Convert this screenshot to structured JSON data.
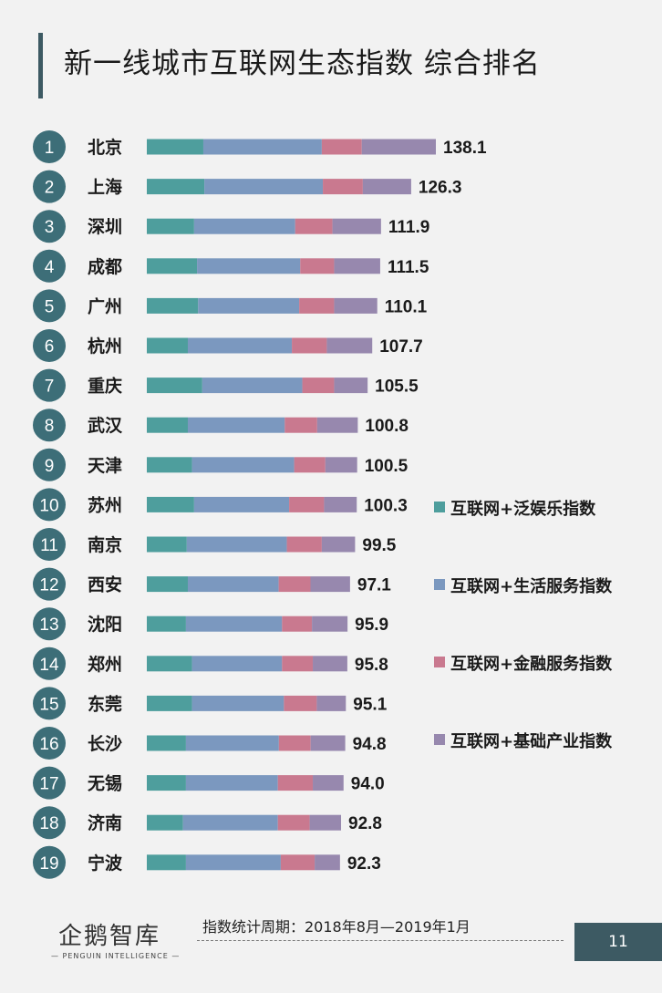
{
  "title": "新一线城市互联网生态指数 综合排名",
  "legend": [
    {
      "label": "互联网+泛娱乐指数",
      "color": "#4e9e9d"
    },
    {
      "label": "互联网+生活服务指数",
      "color": "#7b98bf"
    },
    {
      "label": "互联网+金融服务指数",
      "color": "#c9798f"
    },
    {
      "label": "互联网+基础产业指数",
      "color": "#9788ae"
    }
  ],
  "footer_note": "指数统计周期：2018年8月—2019年1月",
  "logo": {
    "main": "企鹅智库",
    "sub": "— PENGUIN INTELLIGENCE —"
  },
  "page_number": "11",
  "badge_color": "#3d6e78",
  "chart_data": {
    "type": "bar",
    "orientation": "horizontal",
    "stacked": true,
    "categories": [
      "北京",
      "上海",
      "深圳",
      "成都",
      "广州",
      "杭州",
      "重庆",
      "武汉",
      "天津",
      "苏州",
      "南京",
      "西安",
      "沈阳",
      "郑州",
      "东莞",
      "长沙",
      "无锡",
      "济南",
      "宁波"
    ],
    "ranks": [
      "1",
      "2",
      "3",
      "4",
      "5",
      "6",
      "7",
      "8",
      "9",
      "10",
      "11",
      "12",
      "13",
      "14",
      "15",
      "16",
      "17",
      "18",
      "19"
    ],
    "totals": [
      138.1,
      126.3,
      111.9,
      111.5,
      110.1,
      107.7,
      105.5,
      100.8,
      100.5,
      100.3,
      99.5,
      97.1,
      95.9,
      95.8,
      95.1,
      94.8,
      94.0,
      92.8,
      92.3
    ],
    "total_labels": [
      "138.1",
      "126.3",
      "111.9",
      "111.5",
      "110.1",
      "107.7",
      "105.5",
      "100.8",
      "100.5",
      "100.3",
      "99.5",
      "97.1",
      "95.9",
      "95.8",
      "95.1",
      "94.8",
      "94.0",
      "92.8",
      "92.3"
    ],
    "series": [
      {
        "name": "互联网+泛娱乐指数",
        "values": [
          27.0,
          27.5,
          22.6,
          24.0,
          24.5,
          19.6,
          26.5,
          19.6,
          21.6,
          22.6,
          19.1,
          19.6,
          18.7,
          21.6,
          21.6,
          18.7,
          18.7,
          17.3,
          18.7
        ]
      },
      {
        "name": "互联网+生活服务指数",
        "values": [
          56.6,
          56.6,
          48.3,
          49.3,
          48.3,
          49.7,
          47.8,
          46.3,
          48.8,
          45.4,
          47.8,
          43.4,
          45.9,
          43.0,
          43.9,
          44.4,
          43.9,
          45.3,
          45.3
        ]
      },
      {
        "name": "互联网+金融服务指数",
        "values": [
          19.1,
          19.1,
          17.8,
          16.2,
          16.7,
          16.7,
          15.2,
          15.5,
          14.9,
          16.7,
          16.7,
          15.2,
          14.3,
          14.7,
          15.7,
          15.2,
          16.7,
          15.2,
          16.2
        ]
      },
      {
        "name": "互联网+基础产业指数",
        "values": [
          35.4,
          23.1,
          23.2,
          22.0,
          20.6,
          21.7,
          16.0,
          19.4,
          15.2,
          15.6,
          15.9,
          18.9,
          17.0,
          16.5,
          13.9,
          16.5,
          14.7,
          15.0,
          12.1
        ]
      }
    ],
    "xlim": [
      0,
      138.1
    ]
  }
}
